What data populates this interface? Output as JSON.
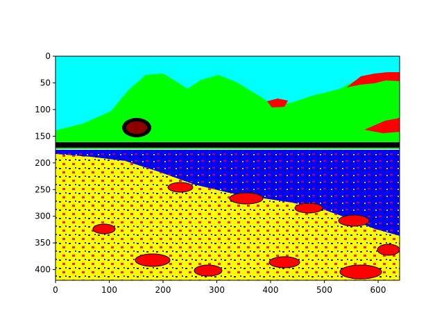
{
  "chart_data": {
    "type": "heatmap",
    "description_kind": "image-segmentation-plot",
    "title": "",
    "xlabel": "",
    "ylabel": "",
    "xlim": [
      0,
      640
    ],
    "ylim": [
      420,
      0
    ],
    "x_ticks": [
      0,
      100,
      200,
      300,
      400,
      500,
      600
    ],
    "y_ticks": [
      0,
      50,
      100,
      150,
      200,
      250,
      300,
      350,
      400
    ],
    "x_tick_labels": [
      "0",
      "100",
      "200",
      "300",
      "400",
      "500",
      "600"
    ],
    "y_tick_labels": [
      "0",
      "50",
      "100",
      "150",
      "200",
      "250",
      "300",
      "350",
      "400"
    ],
    "grid": false,
    "legend": "none",
    "colors": {
      "sky": "#00ffff",
      "mountains": "#00ff00",
      "accent_red": "#ff0000",
      "dark": "#000000",
      "water": "#0000ff",
      "field": "#ffff00",
      "background": "#ffffff"
    },
    "regions": [
      {
        "name": "sky",
        "color": "#00ffff"
      },
      {
        "name": "mountains",
        "color": "#00ff00"
      },
      {
        "name": "water",
        "color": "#0000ff"
      },
      {
        "name": "field",
        "color": "#ffff00"
      },
      {
        "name": "flowers",
        "color": "#ff0000"
      },
      {
        "name": "shadows",
        "color": "#000000"
      }
    ]
  }
}
